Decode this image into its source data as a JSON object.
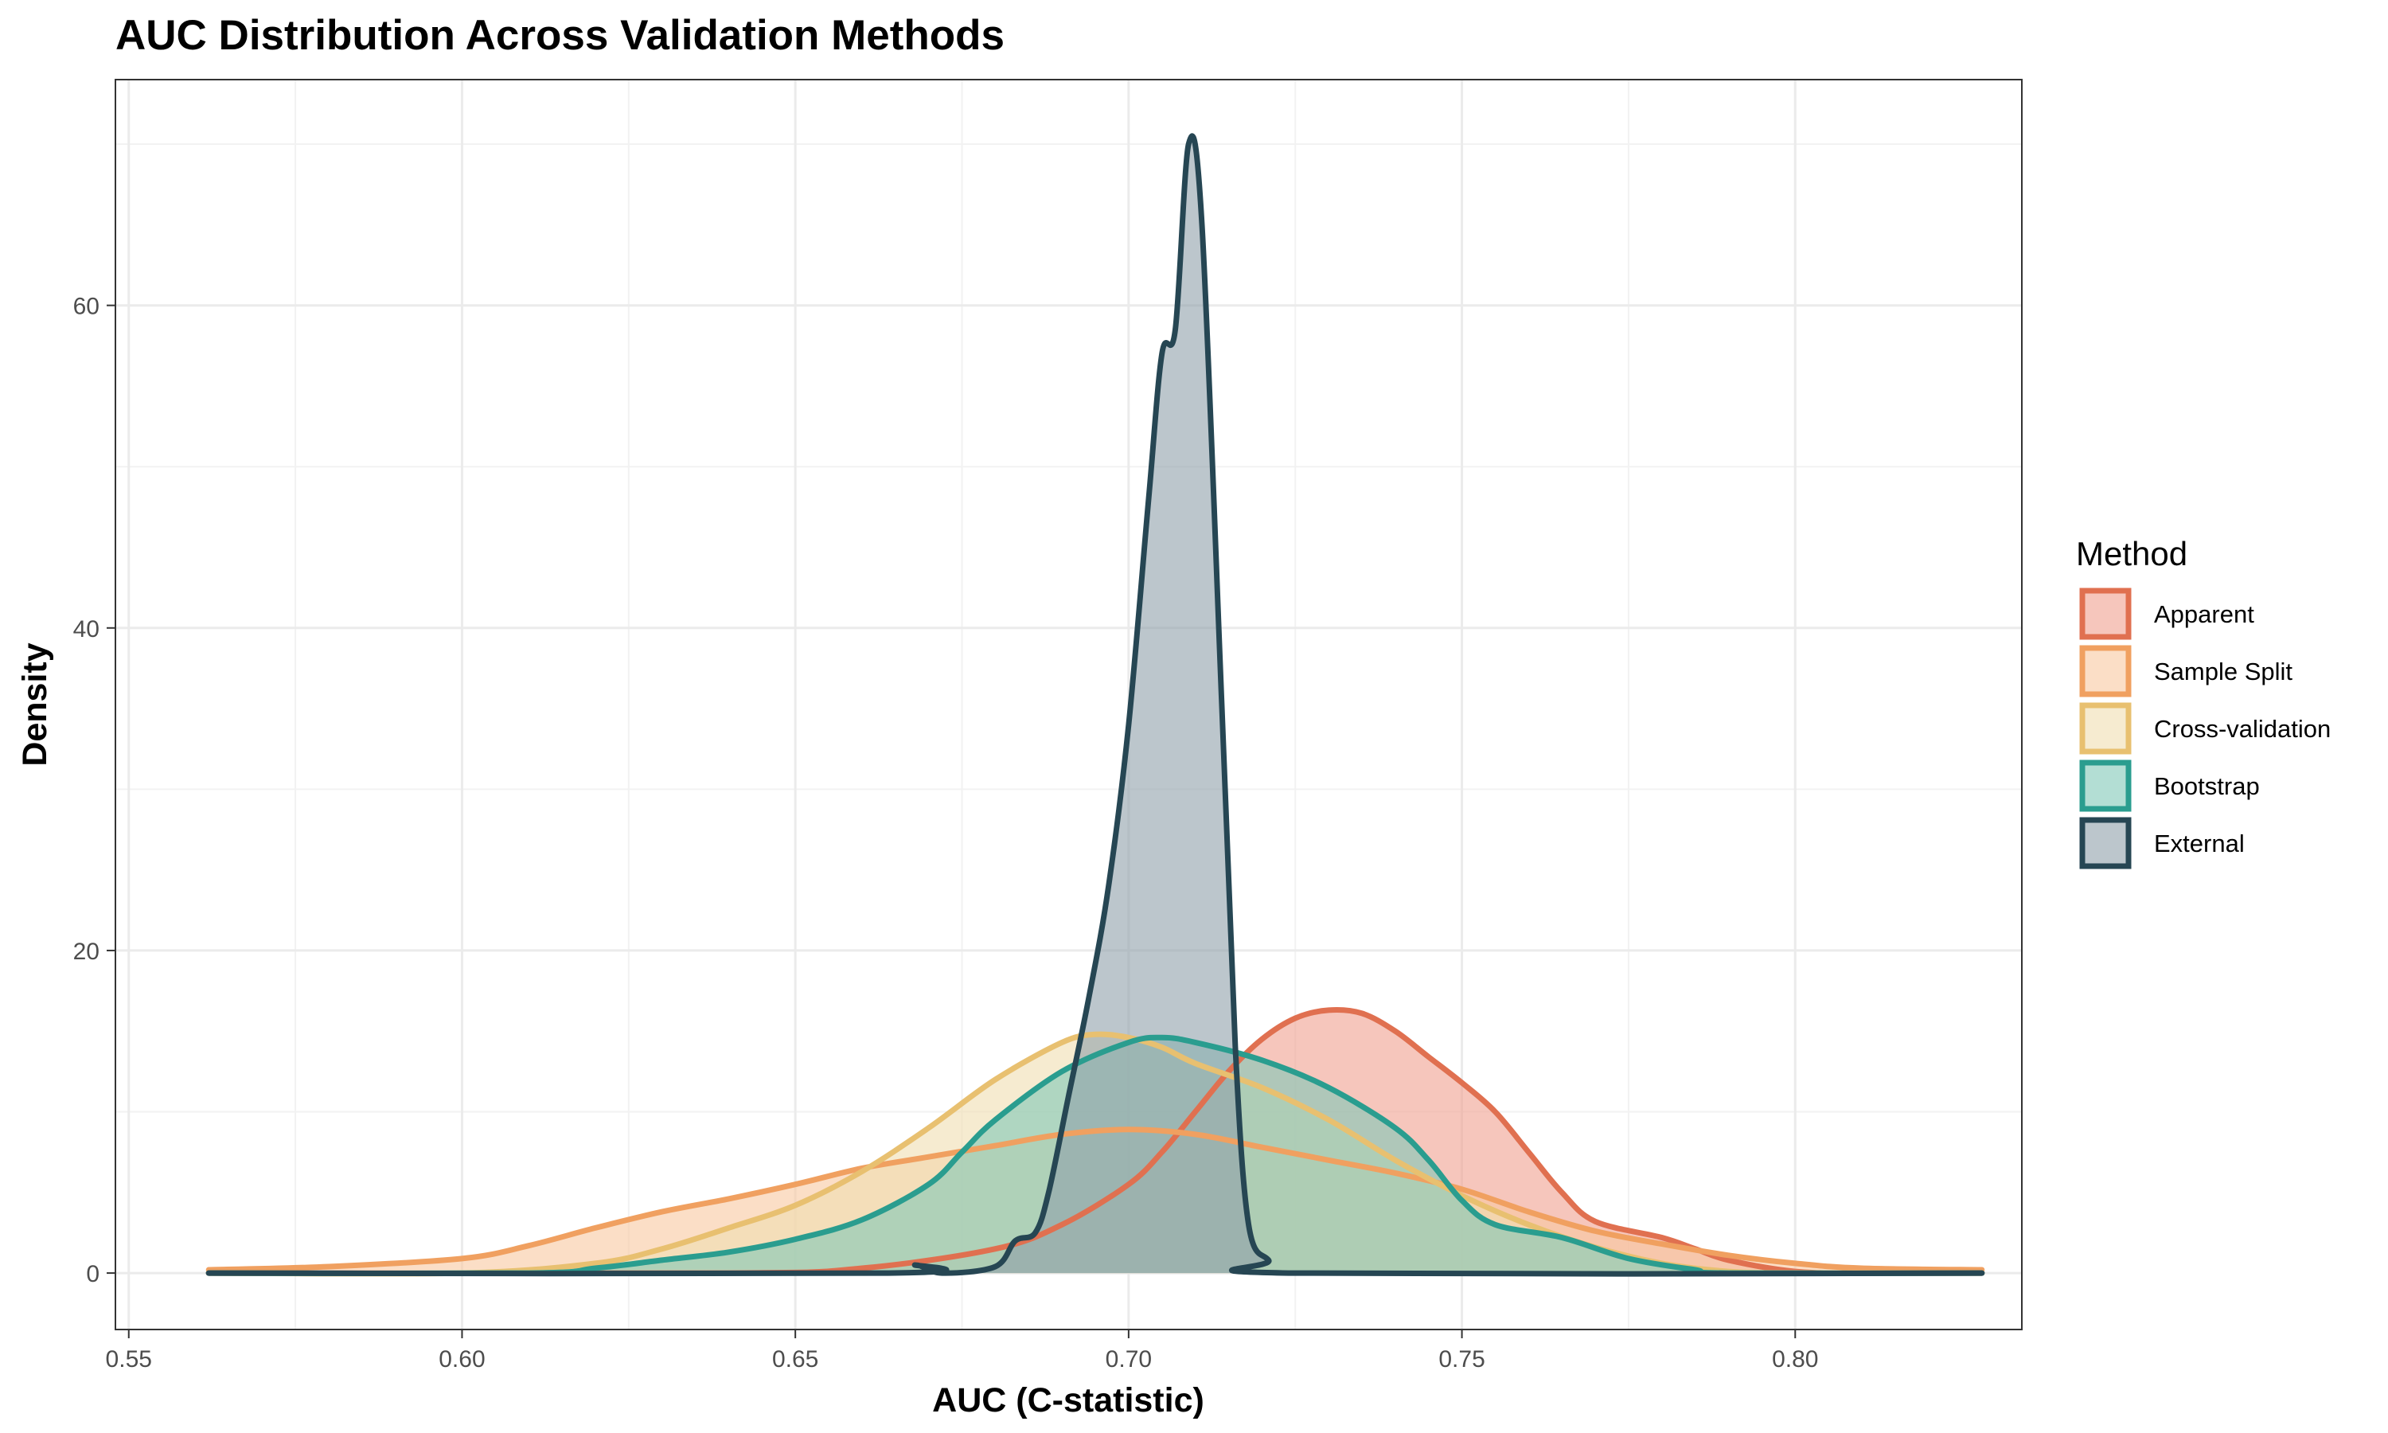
{
  "chart_data": {
    "type": "area",
    "title": "AUC Distribution Across Validation Methods",
    "xlabel": "AUC (C-statistic)",
    "ylabel": "Density",
    "xlim": [
      0.548,
      0.834
    ],
    "ylim": [
      -3.5,
      74
    ],
    "x_ticks": [
      "0.55",
      "0.60",
      "0.65",
      "0.70",
      "0.75",
      "0.80"
    ],
    "y_ticks": [
      "0",
      "20",
      "40",
      "60"
    ],
    "grid": true,
    "legend": {
      "title": "Method",
      "position": "right"
    },
    "series": [
      {
        "name": "Apparent",
        "color": "#E07050",
        "fill": "#F0A090",
        "points": [
          [
            0.562,
            0
          ],
          [
            0.64,
            0
          ],
          [
            0.66,
            0.3
          ],
          [
            0.68,
            1.5
          ],
          [
            0.69,
            3
          ],
          [
            0.7,
            5.5
          ],
          [
            0.705,
            7.5
          ],
          [
            0.71,
            10
          ],
          [
            0.715,
            12.5
          ],
          [
            0.72,
            14.5
          ],
          [
            0.725,
            15.8
          ],
          [
            0.73,
            16.3
          ],
          [
            0.735,
            16.1
          ],
          [
            0.74,
            15
          ],
          [
            0.745,
            13.4
          ],
          [
            0.75,
            11.8
          ],
          [
            0.755,
            10
          ],
          [
            0.76,
            7.5
          ],
          [
            0.765,
            5
          ],
          [
            0.77,
            3.2
          ],
          [
            0.78,
            2.2
          ],
          [
            0.785,
            1.5
          ],
          [
            0.79,
            0.8
          ],
          [
            0.8,
            0.1
          ],
          [
            0.81,
            0
          ],
          [
            0.828,
            0
          ]
        ]
      },
      {
        "name": "Sample Split",
        "color": "#F0A060",
        "fill": "#F8C8A0",
        "points": [
          [
            0.562,
            0.2
          ],
          [
            0.58,
            0.4
          ],
          [
            0.6,
            0.9
          ],
          [
            0.61,
            1.7
          ],
          [
            0.62,
            2.8
          ],
          [
            0.63,
            3.8
          ],
          [
            0.64,
            4.6
          ],
          [
            0.65,
            5.5
          ],
          [
            0.66,
            6.5
          ],
          [
            0.67,
            7.2
          ],
          [
            0.68,
            7.9
          ],
          [
            0.69,
            8.6
          ],
          [
            0.7,
            8.9
          ],
          [
            0.71,
            8.6
          ],
          [
            0.72,
            7.8
          ],
          [
            0.73,
            7
          ],
          [
            0.74,
            6.2
          ],
          [
            0.75,
            5.2
          ],
          [
            0.76,
            3.8
          ],
          [
            0.77,
            2.6
          ],
          [
            0.78,
            1.8
          ],
          [
            0.79,
            1.1
          ],
          [
            0.8,
            0.6
          ],
          [
            0.81,
            0.3
          ],
          [
            0.828,
            0.2
          ]
        ]
      },
      {
        "name": "Cross-validation",
        "color": "#E8C070",
        "fill": "#F0DDB0",
        "points": [
          [
            0.562,
            0
          ],
          [
            0.6,
            0
          ],
          [
            0.62,
            0.6
          ],
          [
            0.63,
            1.5
          ],
          [
            0.64,
            2.8
          ],
          [
            0.65,
            4.2
          ],
          [
            0.66,
            6.3
          ],
          [
            0.67,
            9
          ],
          [
            0.68,
            12
          ],
          [
            0.69,
            14.3
          ],
          [
            0.695,
            14.8
          ],
          [
            0.7,
            14.6
          ],
          [
            0.705,
            14
          ],
          [
            0.71,
            13
          ],
          [
            0.72,
            11.5
          ],
          [
            0.73,
            9.5
          ],
          [
            0.74,
            7
          ],
          [
            0.75,
            4.8
          ],
          [
            0.76,
            3
          ],
          [
            0.77,
            1.6
          ],
          [
            0.78,
            0.6
          ],
          [
            0.79,
            0.1
          ],
          [
            0.8,
            0
          ],
          [
            0.828,
            0
          ]
        ]
      },
      {
        "name": "Bootstrap",
        "color": "#2A9D8F",
        "fill": "#80C8B8",
        "points": [
          [
            0.562,
            0
          ],
          [
            0.61,
            0
          ],
          [
            0.62,
            0.3
          ],
          [
            0.63,
            0.8
          ],
          [
            0.64,
            1.3
          ],
          [
            0.65,
            2.1
          ],
          [
            0.66,
            3.3
          ],
          [
            0.67,
            5.5
          ],
          [
            0.675,
            7.5
          ],
          [
            0.68,
            9.5
          ],
          [
            0.69,
            12.5
          ],
          [
            0.7,
            14.3
          ],
          [
            0.705,
            14.6
          ],
          [
            0.71,
            14.3
          ],
          [
            0.72,
            13.2
          ],
          [
            0.73,
            11.5
          ],
          [
            0.74,
            9
          ],
          [
            0.745,
            7
          ],
          [
            0.75,
            4.5
          ],
          [
            0.755,
            3
          ],
          [
            0.765,
            2.2
          ],
          [
            0.775,
            0.9
          ],
          [
            0.785,
            0.2
          ],
          [
            0.79,
            0
          ],
          [
            0.828,
            0
          ]
        ]
      },
      {
        "name": "External",
        "color": "#264653",
        "fill": "#8FA0AA",
        "points": [
          [
            0.562,
            0
          ],
          [
            0.664,
            0
          ],
          [
            0.668,
            0.5
          ],
          [
            0.672,
            0
          ],
          [
            0.68,
            0.4
          ],
          [
            0.683,
            2
          ],
          [
            0.686,
            2.5
          ],
          [
            0.688,
            5
          ],
          [
            0.691,
            11
          ],
          [
            0.694,
            17
          ],
          [
            0.697,
            24
          ],
          [
            0.7,
            34
          ],
          [
            0.703,
            48
          ],
          [
            0.705,
            57
          ],
          [
            0.707,
            58.5
          ],
          [
            0.709,
            70
          ],
          [
            0.711,
            65
          ],
          [
            0.714,
            35
          ],
          [
            0.716,
            14
          ],
          [
            0.718,
            3
          ],
          [
            0.721,
            0.8
          ],
          [
            0.724,
            0
          ],
          [
            0.828,
            0
          ]
        ]
      }
    ]
  }
}
